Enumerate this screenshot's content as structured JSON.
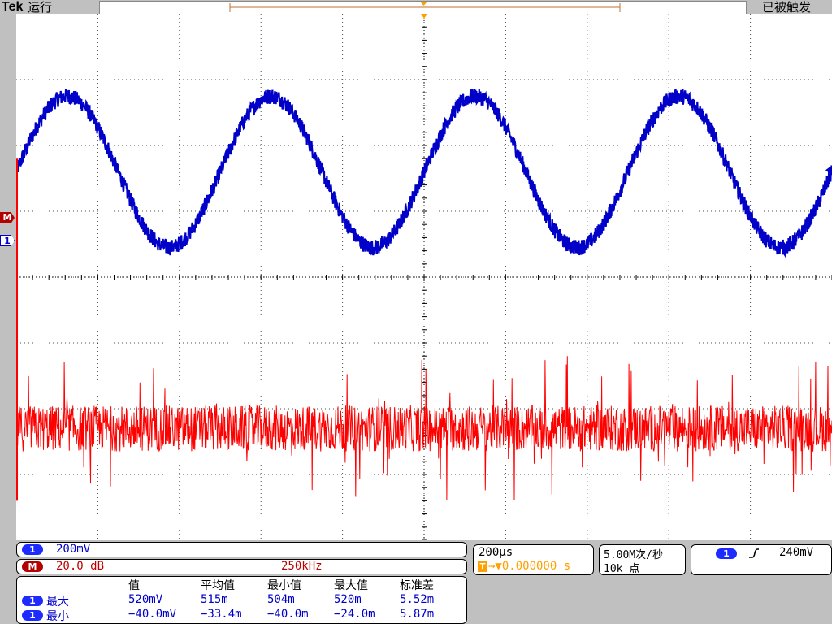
{
  "header": {
    "brand": "Tek",
    "run_state": "运行",
    "trigger_state": "已被触发"
  },
  "markers": {
    "math": "M",
    "channel1": "1"
  },
  "colors": {
    "ch1": "#0000c8",
    "math": "#ff0000",
    "grid": "#000000",
    "panel_bg": "#ffffff",
    "frame": "#c0c0c0",
    "trigger": "#ffa000"
  },
  "channel_panel": {
    "ch1_chip": "1",
    "ch1_scale": "200mV",
    "math_chip": "M",
    "math_scale": "20.0 dB",
    "math_freq": "250kHz"
  },
  "measurements": {
    "headers": [
      "值",
      "平均值",
      "最小值",
      "最大值",
      "标准差"
    ],
    "rows": [
      {
        "chip": "1",
        "label": "最大",
        "value": "520mV",
        "mean": "515m",
        "min": "504m",
        "max": "520m",
        "std": "5.52m"
      },
      {
        "chip": "1",
        "label": "最小",
        "value": "−40.0mV",
        "mean": "−33.4m",
        "min": "−40.0m",
        "max": "−24.0m",
        "std": "5.87m"
      }
    ]
  },
  "timebase": {
    "horizontal": "200µs",
    "trigger_chip": "T",
    "position": "→▼0.000000 s"
  },
  "acquisition": {
    "sample_rate": "5.00M次/秒",
    "record_length": "10k 点"
  },
  "trigger_panel": {
    "chip": "1",
    "slope_icon": "rising-edge-icon",
    "level": "240mV"
  },
  "chart_data": {
    "type": "line",
    "xlim": [
      0,
      10
    ],
    "ylim": [
      -4,
      4
    ],
    "grid": true,
    "series": [
      {
        "name": "1",
        "kind": "sine",
        "cycles": 4,
        "center": 1.6,
        "amplitude": 1.15,
        "noise": 0.12,
        "start_phase": "rising"
      },
      {
        "name": "M",
        "kind": "noise",
        "center": -2.3,
        "spread": 0.5,
        "spike_max": 1.1
      }
    ]
  }
}
